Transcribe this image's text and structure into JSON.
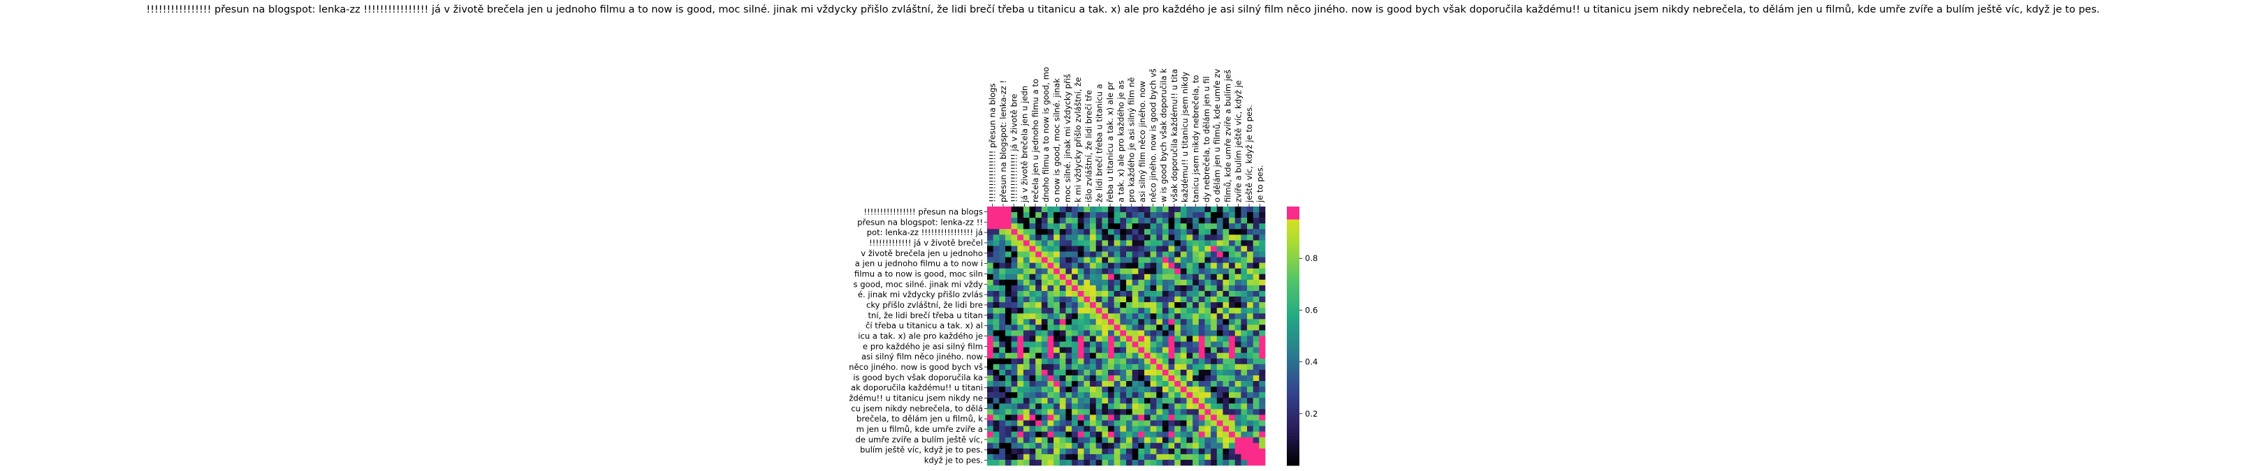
{
  "chart_data": {
    "type": "heatmap",
    "title": "!!!!!!!!!!!!!!!! přesun na blogspot: lenka-zz !!!!!!!!!!!!!!!! já v životě brečela jen u jednoho filmu a to now is good, moc silné. jinak mi vždycky přišlo zvláštní, že lidi brečí třeba u titanicu a tak. x) ale pro každého je asi silný film něco jiného. now is good bych však doporučila každému!! u titanicu jsem nikdy nebrečela, to dělám jen u filmů, kde umře zvíře a bulím ještě víc, když je to pes.",
    "row_labels": [
      "!!!!!!!!!!!!!!!! přesun na blogs",
      "přesun na blogspot: lenka-zz !!",
      "pot: lenka-zz !!!!!!!!!!!!!!!! já",
      "!!!!!!!!!!!!! já v životě brečel",
      " v životě brečela jen u jednoho",
      "a jen u jednoho filmu a to now i",
      "filmu a to now is good, moc siln",
      "s good, moc silné. jinak mi vždy",
      "é. jinak mi vždycky přišlo zvlás",
      "cky přišlo zvláštní, že lidi bre",
      "tní, že lidi brečí třeba u titan",
      "čí třeba u titanicu a tak. x) al",
      "icu a tak. x) ale pro každého je",
      "e pro každého je asi silný film ",
      "asi silný film něco jiného. now ",
      "něco jiného. now is good bych vš",
      "is good bych však doporučila ka",
      "ak doporučila každému!! u titani",
      "ždému!! u titanicu jsem nikdy ne",
      "cu jsem nikdy nebrečela, to dělá",
      "brečela, to dělám jen u filmů, k",
      "m jen u filmů, kde umře zvíře a ",
      "de umře zvíře a bulím ještě víc,",
      " bulím ještě víc, když je to pes.",
      "když je to pes."
    ],
    "col_labels": [
      "!!!!!!!!!!!!!!!! přesun na blogs",
      "přesun na blogspot: lenka-zz !",
      "!!!!!!!!!!!!!!! já v životě bre",
      "já v životě brečela jen u jedn",
      "rečela jen u jednoho filmu a to",
      "dnoho filmu a to now is good, mo",
      "o now is good, moc silné. jinak",
      "moc silné. jinak mi vždycky přiš",
      "k mi vždycky přišlo zvláštní, že",
      "išlo zvláštní, že lidi brečí tře",
      "že lidi brečí třeba u titanicu a",
      "řeba u titanicu a tak. x) ale pr",
      "a tak. x) ale pro každého je as",
      "pro každého je asi silný film ně",
      "asi silný film něco jiného. now",
      "něco jiného. now is good bych vš",
      "w is good bych však doporučila k",
      "však doporučila každému!! u tita",
      "každému!! u titanicu jsem nikdy",
      "tanicu jsem nikdy nebrečela, to",
      "dy nebrečela, to dělám jen u fil",
      "o dělám jen u filmů, kde umře zv",
      "filmů, kde umře zvíře a bulím ješ",
      "zvíře a bulím ještě víc, když je",
      "ještě víc, když je to pes.",
      "je to pes."
    ],
    "value_range": [
      0,
      1
    ],
    "colormap": [
      "#000000",
      "#2b1d5c",
      "#33448f",
      "#2a7b8e",
      "#23a884",
      "#52c569",
      "#a8db34",
      "#f0e01f",
      "#fa2b8a"
    ],
    "highlight_color": "#fa2b8a",
    "colorbar_ticks": [
      0.2,
      0.4,
      0.6,
      0.8
    ],
    "notes": "self-similarity heatmap; diagonal blocks and a few off-diagonal squares near 1.0"
  }
}
